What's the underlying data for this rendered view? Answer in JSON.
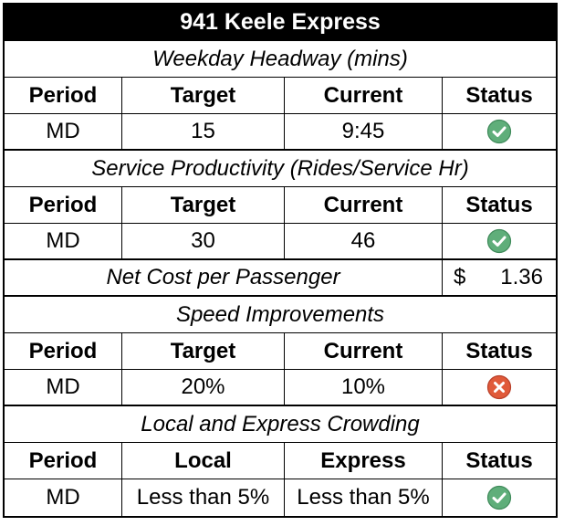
{
  "title": "941 Keele Express",
  "headers": {
    "period": "Period",
    "target": "Target",
    "current": "Current",
    "status": "Status",
    "local": "Local",
    "express": "Express"
  },
  "headway": {
    "section_title": "Weekday Headway (mins)",
    "period": "MD",
    "target": "15",
    "current": "9:45",
    "status_icon": "check-icon",
    "status_color": "#5fae7a"
  },
  "productivity": {
    "section_title": "Service Productivity (Rides/Service Hr)",
    "period": "MD",
    "target": "30",
    "current": "46",
    "status_icon": "check-icon",
    "status_color": "#5fae7a"
  },
  "net_cost": {
    "label": "Net Cost per Passenger",
    "currency": "$",
    "value": "1.36"
  },
  "speed": {
    "section_title": "Speed Improvements",
    "period": "MD",
    "target": "20%",
    "current": "10%",
    "status_icon": "x-icon",
    "status_color": "#e05a3a"
  },
  "crowding": {
    "section_title": "Local and Express Crowding",
    "period": "MD",
    "local": "Less than 5%",
    "express": "Less than 5%",
    "status_icon": "check-icon",
    "status_color": "#5fae7a"
  }
}
